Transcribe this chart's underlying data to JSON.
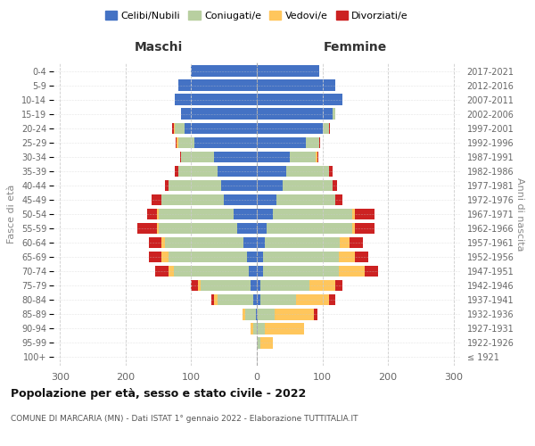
{
  "age_groups": [
    "100+",
    "95-99",
    "90-94",
    "85-89",
    "80-84",
    "75-79",
    "70-74",
    "65-69",
    "60-64",
    "55-59",
    "50-54",
    "45-49",
    "40-44",
    "35-39",
    "30-34",
    "25-29",
    "20-24",
    "15-19",
    "10-14",
    "5-9",
    "0-4"
  ],
  "birth_years": [
    "≤ 1921",
    "1922-1926",
    "1927-1931",
    "1932-1936",
    "1937-1941",
    "1942-1946",
    "1947-1951",
    "1952-1956",
    "1957-1961",
    "1962-1966",
    "1967-1971",
    "1972-1976",
    "1977-1981",
    "1982-1986",
    "1987-1991",
    "1992-1996",
    "1997-2001",
    "2002-2006",
    "2007-2011",
    "2012-2016",
    "2017-2021"
  ],
  "maschi": {
    "celibi": [
      0,
      0,
      0,
      2,
      5,
      10,
      12,
      15,
      20,
      30,
      35,
      50,
      55,
      60,
      65,
      95,
      110,
      115,
      125,
      120,
      100
    ],
    "coniugati": [
      0,
      0,
      5,
      15,
      55,
      75,
      115,
      120,
      120,
      120,
      115,
      95,
      80,
      60,
      50,
      25,
      15,
      0,
      0,
      0,
      0
    ],
    "vedovi": [
      0,
      0,
      5,
      5,
      5,
      5,
      8,
      10,
      5,
      2,
      2,
      0,
      0,
      0,
      0,
      2,
      2,
      0,
      0,
      0,
      0
    ],
    "divorziati": [
      0,
      0,
      0,
      0,
      5,
      10,
      20,
      20,
      20,
      30,
      15,
      15,
      5,
      5,
      2,
      2,
      2,
      0,
      0,
      0,
      0
    ]
  },
  "femmine": {
    "nubili": [
      0,
      0,
      2,
      2,
      5,
      5,
      10,
      10,
      12,
      15,
      25,
      30,
      40,
      45,
      50,
      75,
      100,
      115,
      130,
      120,
      95
    ],
    "coniugate": [
      0,
      5,
      10,
      25,
      55,
      75,
      115,
      115,
      115,
      130,
      120,
      90,
      75,
      65,
      40,
      20,
      10,
      5,
      0,
      0,
      0
    ],
    "vedove": [
      0,
      20,
      60,
      60,
      50,
      40,
      40,
      25,
      15,
      5,
      5,
      0,
      0,
      0,
      2,
      0,
      0,
      0,
      0,
      0,
      0
    ],
    "divorziate": [
      0,
      0,
      0,
      5,
      10,
      10,
      20,
      20,
      20,
      30,
      30,
      10,
      8,
      5,
      2,
      2,
      2,
      0,
      0,
      0,
      0
    ]
  },
  "colors": {
    "celibi": "#4472c4",
    "coniugati": "#b8cfa0",
    "vedovi": "#ffc65c",
    "divorziati": "#cc2222"
  },
  "xlim": 310,
  "title": "Popolazione per età, sesso e stato civile - 2022",
  "subtitle": "COMUNE DI MARCARIA (MN) - Dati ISTAT 1° gennaio 2022 - Elaborazione TUTTITALIA.IT",
  "ylabel_left": "Fasce di età",
  "ylabel_right": "Anni di nascita",
  "xlabel_left": "Maschi",
  "xlabel_right": "Femmine",
  "legend_labels": [
    "Celibi/Nubili",
    "Coniugati/e",
    "Vedovi/e",
    "Divorziati/e"
  ]
}
